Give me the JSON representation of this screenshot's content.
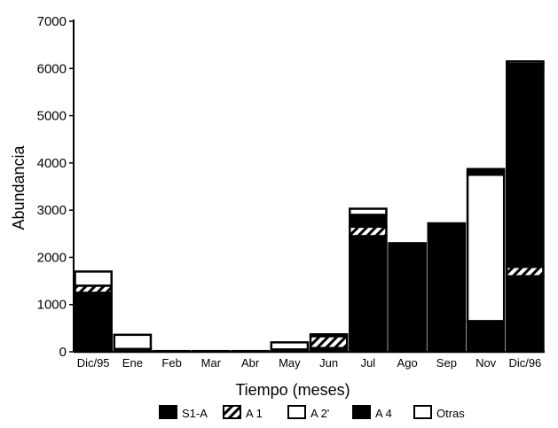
{
  "chart_data": {
    "type": "bar",
    "stacked": true,
    "title": "",
    "xlabel": "Tiempo (meses)",
    "ylabel": "Abundancia",
    "ylim": [
      0,
      7000
    ],
    "yticks": [
      0,
      1000,
      2000,
      3000,
      4000,
      5000,
      6000,
      7000
    ],
    "grid": false,
    "legend_position": "bottom",
    "categories": [
      "Dic/95",
      "Ene",
      "Feb",
      "Mar",
      "Abr",
      "May",
      "Jun",
      "Jul",
      "Ago",
      "Sep",
      "Nov",
      "Dic/96"
    ],
    "series": [
      {
        "name": "S1-A",
        "fill": "solid",
        "color": "#000000",
        "values": [
          1250,
          30,
          15,
          15,
          15,
          20,
          80,
          2450,
          2300,
          2720,
          650,
          1600
        ]
      },
      {
        "name": "A 1",
        "fill": "hatch",
        "color": "#000000",
        "values": [
          150,
          30,
          0,
          0,
          0,
          30,
          250,
          200,
          0,
          0,
          0,
          200
        ]
      },
      {
        "name": "A 2'",
        "fill": "empty",
        "color": "#ffffff",
        "values": [
          0,
          0,
          0,
          0,
          0,
          150,
          0,
          0,
          0,
          0,
          3100,
          0
        ]
      },
      {
        "name": "A 4",
        "fill": "solid",
        "color": "#000000",
        "values": [
          0,
          0,
          0,
          0,
          0,
          0,
          0,
          250,
          0,
          0,
          120,
          4300
        ]
      },
      {
        "name": "Otras",
        "fill": "empty",
        "color": "#ffffff",
        "values": [
          300,
          300,
          0,
          0,
          0,
          0,
          40,
          130,
          0,
          0,
          0,
          50
        ]
      }
    ]
  }
}
